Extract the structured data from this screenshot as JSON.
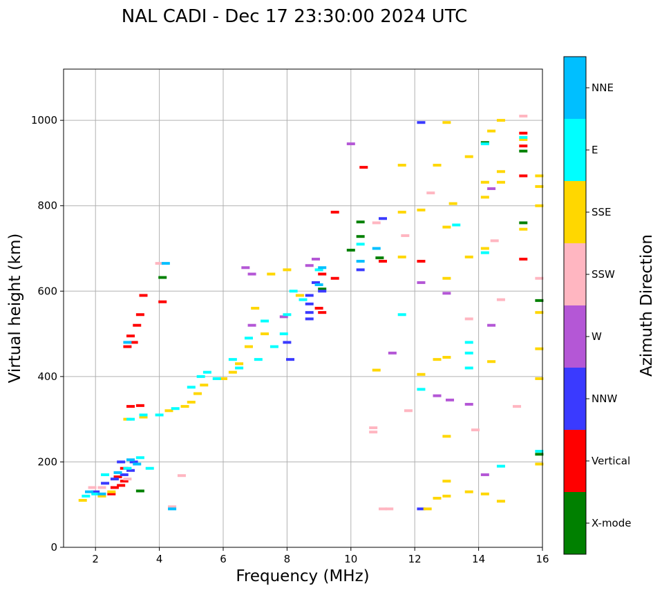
{
  "chart_data": {
    "type": "scatter",
    "title": "NAL CADI - Dec 17 23:30:00 2024 UTC",
    "xlabel": "Frequency (MHz)",
    "ylabel": "Virtual height (km)",
    "xlim": [
      1,
      16
    ],
    "ylim": [
      0,
      1120
    ],
    "x_ticks": [
      2,
      4,
      6,
      8,
      10,
      12,
      14,
      16
    ],
    "x_tick_labels": [
      "2",
      "4",
      "6",
      "8",
      "10",
      "12",
      "14",
      "16"
    ],
    "y_ticks": [
      0,
      200,
      400,
      600,
      800,
      1000
    ],
    "y_tick_labels": [
      "0",
      "200",
      "400",
      "600",
      "800",
      "1000"
    ],
    "grid": true,
    "colorbar": {
      "label": "Azimuth Direction",
      "categories": [
        "X-mode",
        "Vertical",
        "NNW",
        "W",
        "SSW",
        "SSE",
        "E",
        "NNE"
      ],
      "colors": [
        "#008000",
        "#ff0000",
        "#3a3aff",
        "#b457d6",
        "#ffb6c1",
        "#ffd700",
        "#00ffff",
        "#00bfff"
      ]
    },
    "series": [
      {
        "name": "X-mode",
        "points": [
          [
            4.1,
            632
          ],
          [
            9.1,
            605
          ],
          [
            10.0,
            696
          ],
          [
            10.3,
            762
          ],
          [
            10.3,
            728
          ],
          [
            14.2,
            948
          ],
          [
            15.4,
            928
          ],
          [
            15.4,
            760
          ],
          [
            15.9,
            578
          ],
          [
            15.9,
            218
          ],
          [
            3.4,
            132
          ],
          [
            10.9,
            678
          ]
        ]
      },
      {
        "name": "Vertical",
        "points": [
          [
            2.5,
            125
          ],
          [
            2.6,
            140
          ],
          [
            2.7,
            165
          ],
          [
            2.8,
            145
          ],
          [
            2.9,
            155
          ],
          [
            3.0,
            470
          ],
          [
            3.1,
            495
          ],
          [
            3.2,
            480
          ],
          [
            3.3,
            520
          ],
          [
            3.4,
            545
          ],
          [
            3.5,
            590
          ],
          [
            4.1,
            575
          ],
          [
            3.1,
            330
          ],
          [
            3.4,
            332
          ],
          [
            9.0,
            560
          ],
          [
            9.1,
            550
          ],
          [
            9.1,
            640
          ],
          [
            9.5,
            785
          ],
          [
            10.4,
            890
          ],
          [
            11.0,
            670
          ],
          [
            12.2,
            670
          ],
          [
            15.4,
            970
          ],
          [
            15.4,
            940
          ],
          [
            15.4,
            870
          ],
          [
            15.4,
            675
          ],
          [
            2.9,
            185
          ],
          [
            9.5,
            630
          ]
        ]
      },
      {
        "name": "NNW",
        "points": [
          [
            2.0,
            130
          ],
          [
            2.3,
            150
          ],
          [
            2.6,
            160
          ],
          [
            2.9,
            170
          ],
          [
            3.1,
            180
          ],
          [
            3.2,
            200
          ],
          [
            8.0,
            480
          ],
          [
            8.1,
            440
          ],
          [
            8.7,
            590
          ],
          [
            8.7,
            550
          ],
          [
            8.7,
            535
          ],
          [
            8.9,
            620
          ],
          [
            9.1,
            600
          ],
          [
            10.3,
            650
          ],
          [
            11.0,
            770
          ],
          [
            12.2,
            90
          ],
          [
            12.2,
            995
          ],
          [
            2.8,
            200
          ],
          [
            8.7,
            570
          ]
        ]
      },
      {
        "name": "W",
        "points": [
          [
            6.7,
            655
          ],
          [
            6.9,
            640
          ],
          [
            6.9,
            520
          ],
          [
            7.9,
            540
          ],
          [
            8.7,
            660
          ],
          [
            8.9,
            675
          ],
          [
            10.0,
            945
          ],
          [
            11.3,
            455
          ],
          [
            12.7,
            355
          ],
          [
            13.1,
            345
          ],
          [
            13.7,
            335
          ],
          [
            14.2,
            170
          ],
          [
            14.4,
            520
          ],
          [
            14.4,
            840
          ],
          [
            12.2,
            620
          ],
          [
            13.0,
            595
          ]
        ]
      },
      {
        "name": "SSW",
        "points": [
          [
            1.9,
            140
          ],
          [
            2.2,
            140
          ],
          [
            3.0,
            160
          ],
          [
            4.0,
            665
          ],
          [
            4.7,
            168
          ],
          [
            4.4,
            95
          ],
          [
            10.7,
            280
          ],
          [
            10.7,
            270
          ],
          [
            11.0,
            90
          ],
          [
            11.2,
            90
          ],
          [
            11.8,
            320
          ],
          [
            12.5,
            830
          ],
          [
            13.9,
            275
          ],
          [
            13.7,
            535
          ],
          [
            14.5,
            718
          ],
          [
            14.7,
            580
          ],
          [
            15.2,
            330
          ],
          [
            15.4,
            1010
          ],
          [
            15.9,
            630
          ],
          [
            10.8,
            760
          ],
          [
            11.7,
            730
          ]
        ]
      },
      {
        "name": "SSE",
        "points": [
          [
            1.6,
            110
          ],
          [
            2.2,
            120
          ],
          [
            2.5,
            130
          ],
          [
            3.0,
            300
          ],
          [
            3.5,
            305
          ],
          [
            4.3,
            320
          ],
          [
            4.8,
            330
          ],
          [
            5.0,
            340
          ],
          [
            5.2,
            360
          ],
          [
            5.4,
            380
          ],
          [
            6.0,
            395
          ],
          [
            6.3,
            410
          ],
          [
            6.5,
            430
          ],
          [
            6.8,
            470
          ],
          [
            7.0,
            560
          ],
          [
            7.3,
            500
          ],
          [
            7.5,
            640
          ],
          [
            8.0,
            650
          ],
          [
            8.4,
            590
          ],
          [
            10.8,
            415
          ],
          [
            11.6,
            680
          ],
          [
            11.6,
            785
          ],
          [
            11.6,
            895
          ],
          [
            12.2,
            405
          ],
          [
            12.2,
            790
          ],
          [
            12.4,
            90
          ],
          [
            12.7,
            440
          ],
          [
            12.7,
            895
          ],
          [
            13.0,
            630
          ],
          [
            13.0,
            750
          ],
          [
            13.0,
            445
          ],
          [
            13.0,
            260
          ],
          [
            13.0,
            155
          ],
          [
            13.0,
            995
          ],
          [
            13.2,
            805
          ],
          [
            13.7,
            915
          ],
          [
            13.7,
            680
          ],
          [
            13.7,
            130
          ],
          [
            14.2,
            700
          ],
          [
            14.2,
            855
          ],
          [
            14.2,
            820
          ],
          [
            14.2,
            125
          ],
          [
            14.4,
            975
          ],
          [
            14.4,
            435
          ],
          [
            14.7,
            880
          ],
          [
            14.7,
            855
          ],
          [
            14.7,
            1000
          ],
          [
            14.7,
            108
          ],
          [
            15.4,
            955
          ],
          [
            15.4,
            745
          ],
          [
            15.9,
            870
          ],
          [
            15.9,
            800
          ],
          [
            15.9,
            550
          ],
          [
            15.9,
            465
          ],
          [
            15.9,
            395
          ],
          [
            15.9,
            195
          ],
          [
            15.9,
            845
          ],
          [
            12.7,
            115
          ],
          [
            13.0,
            120
          ]
        ]
      },
      {
        "name": "E",
        "points": [
          [
            1.7,
            120
          ],
          [
            2.0,
            125
          ],
          [
            2.3,
            170
          ],
          [
            3.0,
            185
          ],
          [
            3.4,
            210
          ],
          [
            3.7,
            185
          ],
          [
            3.1,
            300
          ],
          [
            3.5,
            310
          ],
          [
            4.0,
            310
          ],
          [
            4.5,
            325
          ],
          [
            5.0,
            375
          ],
          [
            5.3,
            400
          ],
          [
            5.5,
            410
          ],
          [
            5.8,
            395
          ],
          [
            6.3,
            440
          ],
          [
            6.5,
            420
          ],
          [
            6.8,
            490
          ],
          [
            7.1,
            440
          ],
          [
            7.3,
            530
          ],
          [
            7.6,
            470
          ],
          [
            7.9,
            500
          ],
          [
            8.0,
            545
          ],
          [
            8.2,
            600
          ],
          [
            8.5,
            580
          ],
          [
            9.0,
            650
          ],
          [
            10.3,
            710
          ],
          [
            11.6,
            545
          ],
          [
            13.3,
            755
          ],
          [
            13.7,
            420
          ],
          [
            13.7,
            480
          ],
          [
            13.7,
            455
          ],
          [
            14.2,
            690
          ],
          [
            14.2,
            945
          ],
          [
            14.7,
            190
          ],
          [
            15.4,
            960
          ],
          [
            15.9,
            225
          ],
          [
            12.2,
            370
          ]
        ]
      },
      {
        "name": "NNE",
        "points": [
          [
            1.8,
            130
          ],
          [
            2.2,
            125
          ],
          [
            2.7,
            175
          ],
          [
            3.1,
            205
          ],
          [
            3.0,
            480
          ],
          [
            4.2,
            665
          ],
          [
            4.4,
            90
          ],
          [
            9.0,
            615
          ],
          [
            9.1,
            655
          ],
          [
            10.3,
            670
          ],
          [
            10.8,
            700
          ],
          [
            3.3,
            195
          ]
        ]
      }
    ]
  }
}
